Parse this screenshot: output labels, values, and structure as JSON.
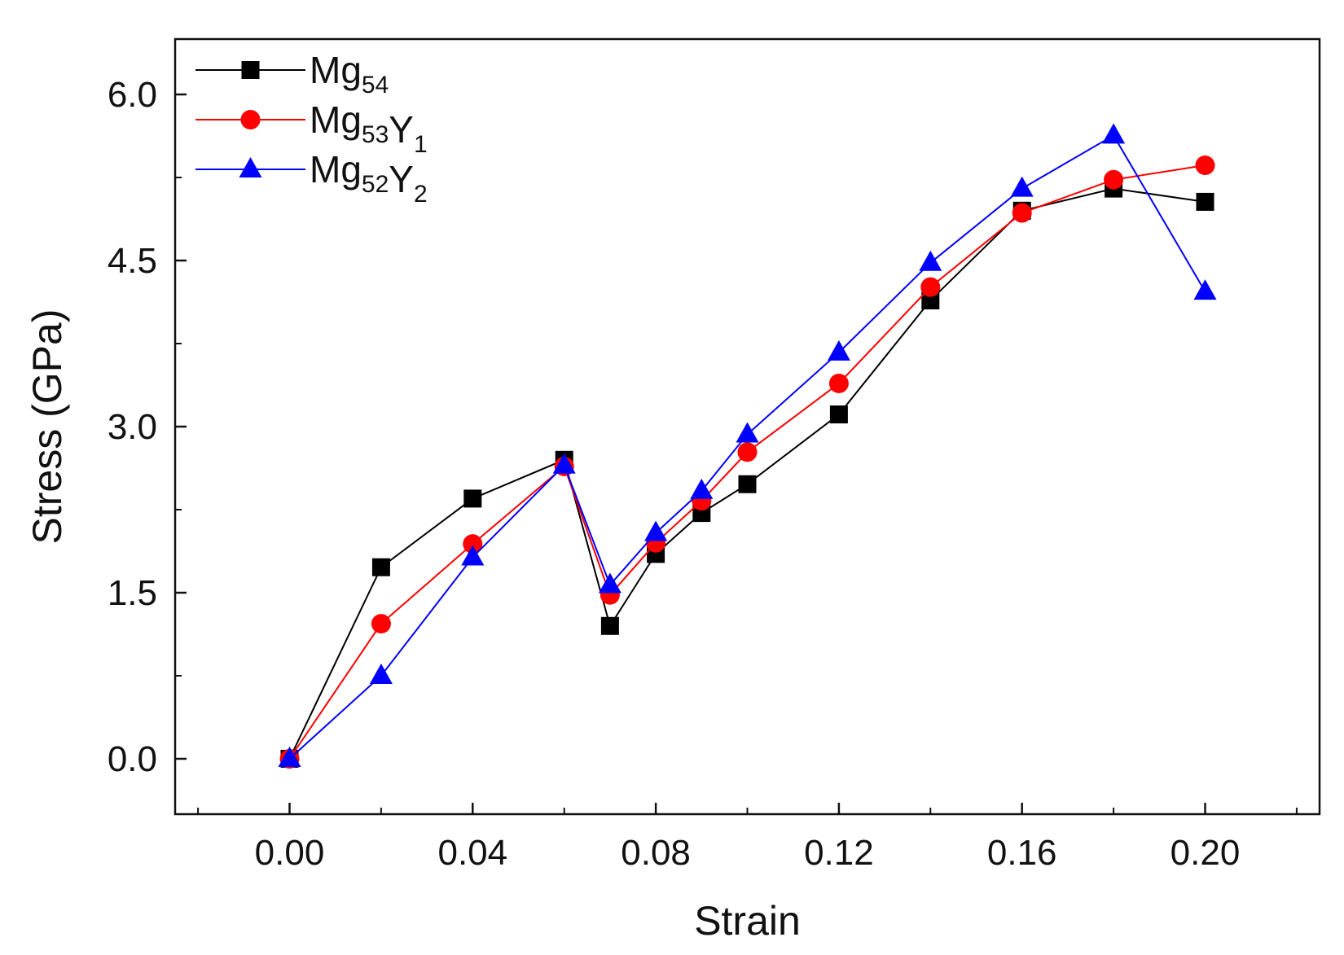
{
  "chart_data": {
    "type": "line",
    "title": "",
    "xlabel": "Strain",
    "ylabel": "Stress (GPa)",
    "xlim": [
      -0.025,
      0.225
    ],
    "ylim": [
      -0.5,
      6.5
    ],
    "xticks": [
      0.0,
      0.04,
      0.08,
      0.12,
      0.16,
      0.2
    ],
    "xtick_labels": [
      "0.00",
      "0.04",
      "0.08",
      "0.12",
      "0.16",
      "0.20"
    ],
    "yticks": [
      0.0,
      1.5,
      3.0,
      4.5,
      6.0
    ],
    "ytick_labels": [
      "0.0",
      "1.5",
      "3.0",
      "4.5",
      "6.0"
    ],
    "legend_position": "top-left",
    "grid": false,
    "series": [
      {
        "name": "Mg54",
        "label_parts": [
          {
            "text": "Mg",
            "sub": "54"
          }
        ],
        "color": "#000000",
        "marker": "square",
        "x": [
          0.0,
          0.02,
          0.04,
          0.06,
          0.07,
          0.08,
          0.09,
          0.1,
          0.12,
          0.14,
          0.16,
          0.18,
          0.2
        ],
        "y": [
          0.0,
          1.73,
          2.35,
          2.7,
          1.2,
          1.85,
          2.22,
          2.48,
          3.11,
          4.14,
          4.95,
          5.15,
          5.03
        ]
      },
      {
        "name": "Mg53Y1",
        "label_parts": [
          {
            "text": "Mg",
            "sub": "53"
          },
          {
            "text": "Y",
            "sub": "1"
          }
        ],
        "color": "#ff0000",
        "marker": "circle",
        "x": [
          0.0,
          0.02,
          0.04,
          0.06,
          0.07,
          0.08,
          0.09,
          0.1,
          0.12,
          0.14,
          0.16,
          0.18,
          0.2
        ],
        "y": [
          0.0,
          1.22,
          1.94,
          2.64,
          1.48,
          1.95,
          2.33,
          2.77,
          3.39,
          4.26,
          4.93,
          5.23,
          5.36
        ]
      },
      {
        "name": "Mg52Y2",
        "label_parts": [
          {
            "text": "Mg",
            "sub": "52"
          },
          {
            "text": "Y",
            "sub": "2"
          }
        ],
        "color": "#0000ff",
        "marker": "triangle",
        "x": [
          0.0,
          0.02,
          0.04,
          0.06,
          0.07,
          0.08,
          0.09,
          0.1,
          0.12,
          0.14,
          0.16,
          0.18,
          0.2
        ],
        "y": [
          0.0,
          0.75,
          1.82,
          2.65,
          1.57,
          2.04,
          2.42,
          2.93,
          3.67,
          4.48,
          5.15,
          5.63,
          4.22
        ]
      }
    ]
  }
}
